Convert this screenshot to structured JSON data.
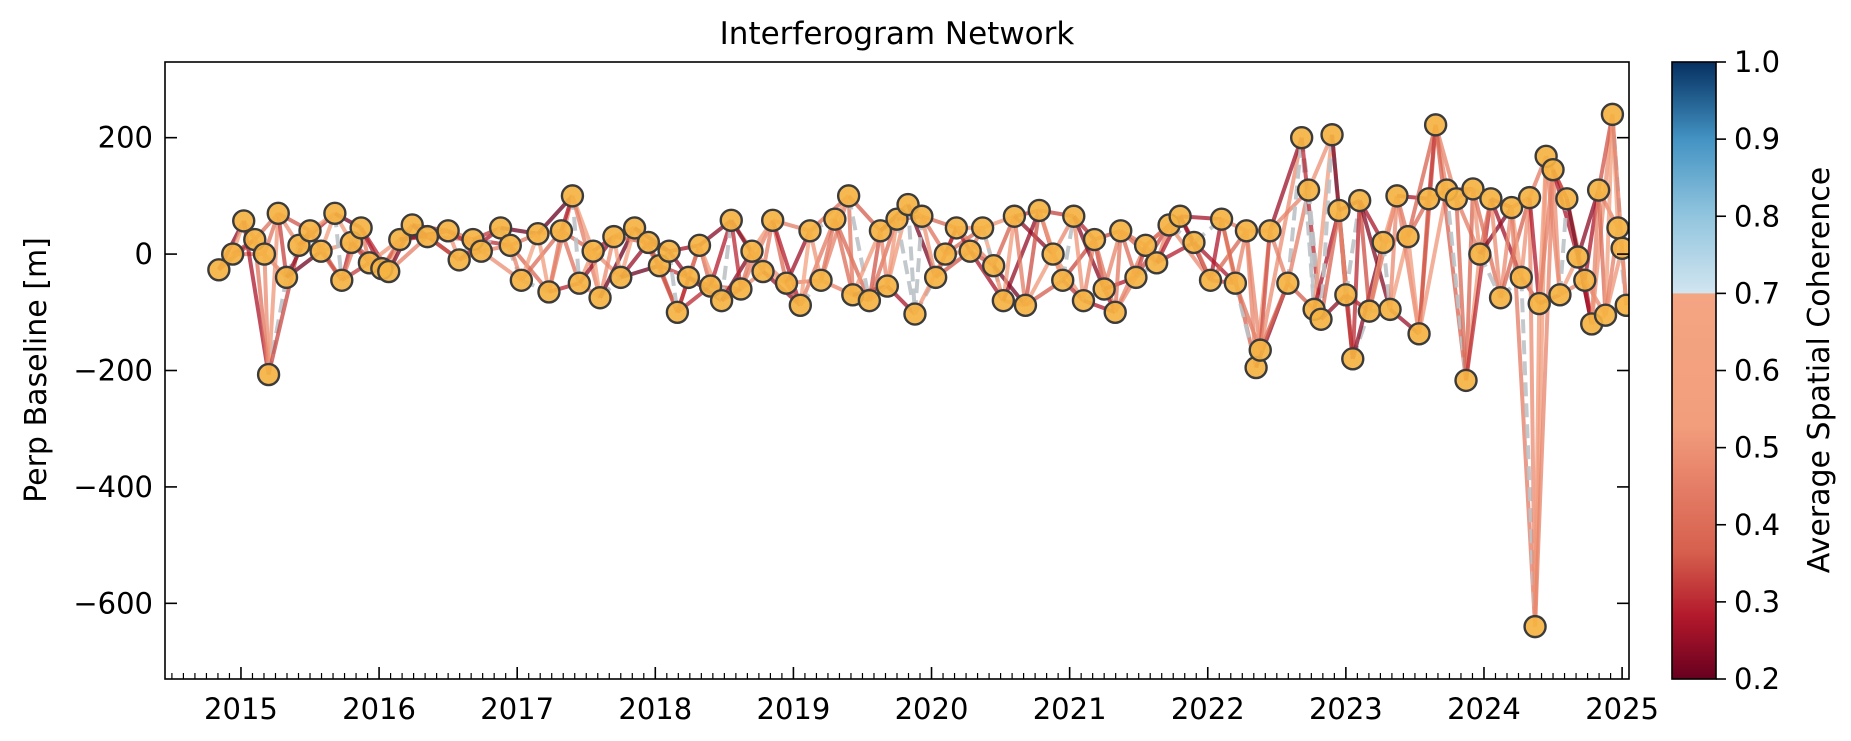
{
  "chart_data": {
    "type": "scatter",
    "title": "Interferogram Network",
    "xlabel": "",
    "ylabel": "Perp Baseline [m]",
    "colorbar_label": "Average Spatial Coherence",
    "xlim": [
      2014.45,
      2025.05
    ],
    "ylim": [
      -730,
      330
    ],
    "xticks": [
      "2015",
      "2016",
      "2017",
      "2018",
      "2019",
      "2020",
      "2021",
      "2022",
      "2023",
      "2024",
      "2025"
    ],
    "yticks": [
      "200",
      "0",
      "−200",
      "−400",
      "−600"
    ],
    "colorbar_ticks": [
      "1.0",
      "0.9",
      "0.8",
      "0.7",
      "0.6",
      "0.5",
      "0.4",
      "0.3",
      "0.2"
    ],
    "colorbar_range": [
      0.2,
      1.0
    ],
    "colorbar_masked_above": 0.7,
    "grid": false,
    "acquisitions": [
      {
        "t": 2014.84,
        "b": -27
      },
      {
        "t": 2014.94,
        "b": 0
      },
      {
        "t": 2015.02,
        "b": 57
      },
      {
        "t": 2015.1,
        "b": 25
      },
      {
        "t": 2015.17,
        "b": 0
      },
      {
        "t": 2015.2,
        "b": -207
      },
      {
        "t": 2015.27,
        "b": 70
      },
      {
        "t": 2015.33,
        "b": -40
      },
      {
        "t": 2015.42,
        "b": 15
      },
      {
        "t": 2015.5,
        "b": 40
      },
      {
        "t": 2015.58,
        "b": 5
      },
      {
        "t": 2015.68,
        "b": 70
      },
      {
        "t": 2015.73,
        "b": -45
      },
      {
        "t": 2015.8,
        "b": 20
      },
      {
        "t": 2015.87,
        "b": 45
      },
      {
        "t": 2015.93,
        "b": -15
      },
      {
        "t": 2016.02,
        "b": -25
      },
      {
        "t": 2016.07,
        "b": -30
      },
      {
        "t": 2016.15,
        "b": 25
      },
      {
        "t": 2016.24,
        "b": 50
      },
      {
        "t": 2016.35,
        "b": 30
      },
      {
        "t": 2016.5,
        "b": 40
      },
      {
        "t": 2016.58,
        "b": -10
      },
      {
        "t": 2016.68,
        "b": 25
      },
      {
        "t": 2016.74,
        "b": 5
      },
      {
        "t": 2016.88,
        "b": 45
      },
      {
        "t": 2016.95,
        "b": 15
      },
      {
        "t": 2017.03,
        "b": -45
      },
      {
        "t": 2017.15,
        "b": 35
      },
      {
        "t": 2017.23,
        "b": -65
      },
      {
        "t": 2017.32,
        "b": 40
      },
      {
        "t": 2017.4,
        "b": 100
      },
      {
        "t": 2017.45,
        "b": -50
      },
      {
        "t": 2017.55,
        "b": 5
      },
      {
        "t": 2017.6,
        "b": -75
      },
      {
        "t": 2017.7,
        "b": 30
      },
      {
        "t": 2017.75,
        "b": -40
      },
      {
        "t": 2017.85,
        "b": 45
      },
      {
        "t": 2017.95,
        "b": 20
      },
      {
        "t": 2018.03,
        "b": -20
      },
      {
        "t": 2018.1,
        "b": 5
      },
      {
        "t": 2018.16,
        "b": -100
      },
      {
        "t": 2018.24,
        "b": -40
      },
      {
        "t": 2018.32,
        "b": 15
      },
      {
        "t": 2018.4,
        "b": -55
      },
      {
        "t": 2018.48,
        "b": -80
      },
      {
        "t": 2018.55,
        "b": 58
      },
      {
        "t": 2018.62,
        "b": -60
      },
      {
        "t": 2018.7,
        "b": 5
      },
      {
        "t": 2018.78,
        "b": -30
      },
      {
        "t": 2018.85,
        "b": 58
      },
      {
        "t": 2018.95,
        "b": -50
      },
      {
        "t": 2019.05,
        "b": -88
      },
      {
        "t": 2019.12,
        "b": 40
      },
      {
        "t": 2019.2,
        "b": -45
      },
      {
        "t": 2019.3,
        "b": 60
      },
      {
        "t": 2019.4,
        "b": 100
      },
      {
        "t": 2019.43,
        "b": -70
      },
      {
        "t": 2019.55,
        "b": -80
      },
      {
        "t": 2019.63,
        "b": 40
      },
      {
        "t": 2019.68,
        "b": -55
      },
      {
        "t": 2019.75,
        "b": 60
      },
      {
        "t": 2019.83,
        "b": 85
      },
      {
        "t": 2019.88,
        "b": -103
      },
      {
        "t": 2019.93,
        "b": 65
      },
      {
        "t": 2020.03,
        "b": -40
      },
      {
        "t": 2020.1,
        "b": 0
      },
      {
        "t": 2020.18,
        "b": 45
      },
      {
        "t": 2020.28,
        "b": 5
      },
      {
        "t": 2020.37,
        "b": 45
      },
      {
        "t": 2020.45,
        "b": -20
      },
      {
        "t": 2020.52,
        "b": -80
      },
      {
        "t": 2020.6,
        "b": 65
      },
      {
        "t": 2020.68,
        "b": -88
      },
      {
        "t": 2020.78,
        "b": 75
      },
      {
        "t": 2020.88,
        "b": 0
      },
      {
        "t": 2020.95,
        "b": -45
      },
      {
        "t": 2021.03,
        "b": 65
      },
      {
        "t": 2021.1,
        "b": -80
      },
      {
        "t": 2021.18,
        "b": 25
      },
      {
        "t": 2021.25,
        "b": -60
      },
      {
        "t": 2021.33,
        "b": -100
      },
      {
        "t": 2021.37,
        "b": 40
      },
      {
        "t": 2021.48,
        "b": -40
      },
      {
        "t": 2021.55,
        "b": 15
      },
      {
        "t": 2021.63,
        "b": -15
      },
      {
        "t": 2021.72,
        "b": 50
      },
      {
        "t": 2021.8,
        "b": 65
      },
      {
        "t": 2021.9,
        "b": 20
      },
      {
        "t": 2022.02,
        "b": -45
      },
      {
        "t": 2022.1,
        "b": 60
      },
      {
        "t": 2022.2,
        "b": -50
      },
      {
        "t": 2022.28,
        "b": 40
      },
      {
        "t": 2022.35,
        "b": -195
      },
      {
        "t": 2022.38,
        "b": -165
      },
      {
        "t": 2022.45,
        "b": 40
      },
      {
        "t": 2022.58,
        "b": -50
      },
      {
        "t": 2022.68,
        "b": 200
      },
      {
        "t": 2022.73,
        "b": 110
      },
      {
        "t": 2022.77,
        "b": -95
      },
      {
        "t": 2022.82,
        "b": -112
      },
      {
        "t": 2022.9,
        "b": 205
      },
      {
        "t": 2022.95,
        "b": 75
      },
      {
        "t": 2023.0,
        "b": -70
      },
      {
        "t": 2023.05,
        "b": -180
      },
      {
        "t": 2023.1,
        "b": 92
      },
      {
        "t": 2023.17,
        "b": -98
      },
      {
        "t": 2023.27,
        "b": 20
      },
      {
        "t": 2023.32,
        "b": -95
      },
      {
        "t": 2023.37,
        "b": 100
      },
      {
        "t": 2023.45,
        "b": 30
      },
      {
        "t": 2023.53,
        "b": -137
      },
      {
        "t": 2023.6,
        "b": 95
      },
      {
        "t": 2023.65,
        "b": 222
      },
      {
        "t": 2023.73,
        "b": 110
      },
      {
        "t": 2023.8,
        "b": 95
      },
      {
        "t": 2023.87,
        "b": -217
      },
      {
        "t": 2023.92,
        "b": 112
      },
      {
        "t": 2023.97,
        "b": 0
      },
      {
        "t": 2024.05,
        "b": 95
      },
      {
        "t": 2024.12,
        "b": -75
      },
      {
        "t": 2024.2,
        "b": 80
      },
      {
        "t": 2024.27,
        "b": -40
      },
      {
        "t": 2024.33,
        "b": 97
      },
      {
        "t": 2024.37,
        "b": -640
      },
      {
        "t": 2024.4,
        "b": -85
      },
      {
        "t": 2024.45,
        "b": 168
      },
      {
        "t": 2024.5,
        "b": 145
      },
      {
        "t": 2024.55,
        "b": -70
      },
      {
        "t": 2024.6,
        "b": 95
      },
      {
        "t": 2024.68,
        "b": -5
      },
      {
        "t": 2024.73,
        "b": -45
      },
      {
        "t": 2024.78,
        "b": -120
      },
      {
        "t": 2024.83,
        "b": 110
      },
      {
        "t": 2024.88,
        "b": -105
      },
      {
        "t": 2024.93,
        "b": 240
      },
      {
        "t": 2024.97,
        "b": 45
      },
      {
        "t": 2025.0,
        "b": 10
      },
      {
        "t": 2025.03,
        "b": -88
      }
    ]
  },
  "colors": {
    "marker_fill": "#f5b342",
    "marker_edge": "#3b3b3b",
    "masked_edge": "#bdc3c7"
  }
}
